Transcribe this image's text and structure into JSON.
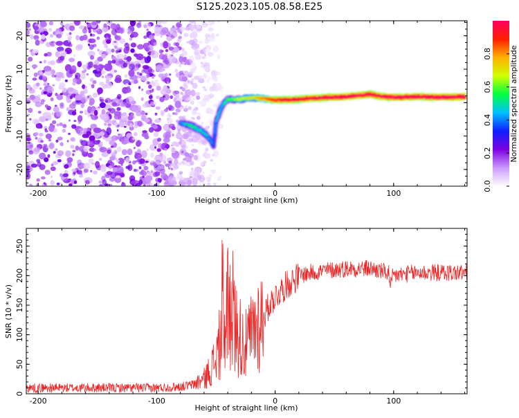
{
  "title": "S125.2023.105.08.58.E25",
  "chart_data": [
    {
      "type": "heatmap",
      "xlabel": "Height of straight line (km)",
      "ylabel": "Frequency (Hz)",
      "xlim": [
        -210,
        162
      ],
      "ylim": [
        -25,
        24.5
      ],
      "xticks": [
        -200,
        -100,
        0,
        100
      ],
      "yticks": [
        -20,
        -10,
        0,
        10,
        20
      ],
      "colorbar": {
        "label": "Normalized spectral amplitude",
        "range": [
          0,
          1
        ],
        "ticks": [
          0.0,
          0.2,
          0.4,
          0.6,
          0.8
        ],
        "colormap": [
          "#ffffff",
          "#cc99ff",
          "#7b00e0",
          "#1020ff",
          "#00c0ff",
          "#00ff40",
          "#d0ff00",
          "#ffb000",
          "#ff2000",
          "#ff0060"
        ]
      },
      "noise_region": {
        "x_range": [
          -210,
          -60
        ],
        "y_range": [
          -25,
          24.5
        ],
        "amplitude": [
          0.05,
          0.25
        ]
      },
      "signal_track": {
        "x": [
          -80,
          -70,
          -60,
          -55,
          -52,
          -50,
          -45,
          -40,
          -30,
          -20,
          -10,
          0,
          10,
          20,
          40,
          60,
          80,
          90,
          100,
          120,
          140,
          160
        ],
        "frequency": [
          -6,
          -7,
          -9,
          -11,
          -13,
          -6,
          -1,
          1,
          1,
          1.5,
          1.2,
          0.8,
          0.8,
          1,
          1.5,
          1.8,
          2.5,
          1.8,
          1.6,
          1.8,
          1.6,
          1.8
        ],
        "amplitude": [
          0.35,
          0.45,
          0.4,
          0.35,
          0.3,
          0.35,
          0.4,
          0.5,
          0.6,
          0.65,
          0.75,
          0.85,
          0.9,
          0.9,
          0.92,
          0.95,
          0.9,
          0.92,
          0.95,
          0.93,
          0.95,
          0.93
        ]
      }
    },
    {
      "type": "line",
      "xlabel": "Height of straight line (km)",
      "ylabel": "SNR (10 * v/v)",
      "xlim": [
        -210,
        162
      ],
      "ylim": [
        0,
        280
      ],
      "xticks": [
        -200,
        -100,
        0,
        100
      ],
      "yticks": [
        0,
        50,
        100,
        150,
        200,
        250
      ],
      "grid": false,
      "series": [
        {
          "color": "#ee2222",
          "x": [
            -210,
            -150,
            -100,
            -80,
            -70,
            -60,
            -55,
            -50,
            -45,
            -40,
            -35,
            -30,
            -25,
            -20,
            -15,
            -10,
            -5,
            0,
            10,
            20,
            30,
            40,
            60,
            80,
            95,
            100,
            120,
            140,
            162
          ],
          "values": [
            10,
            10,
            10,
            12,
            15,
            25,
            40,
            60,
            100,
            150,
            120,
            100,
            80,
            100,
            120,
            130,
            150,
            165,
            185,
            200,
            205,
            208,
            212,
            212,
            205,
            200,
            205,
            205,
            205
          ]
        }
      ]
    }
  ]
}
